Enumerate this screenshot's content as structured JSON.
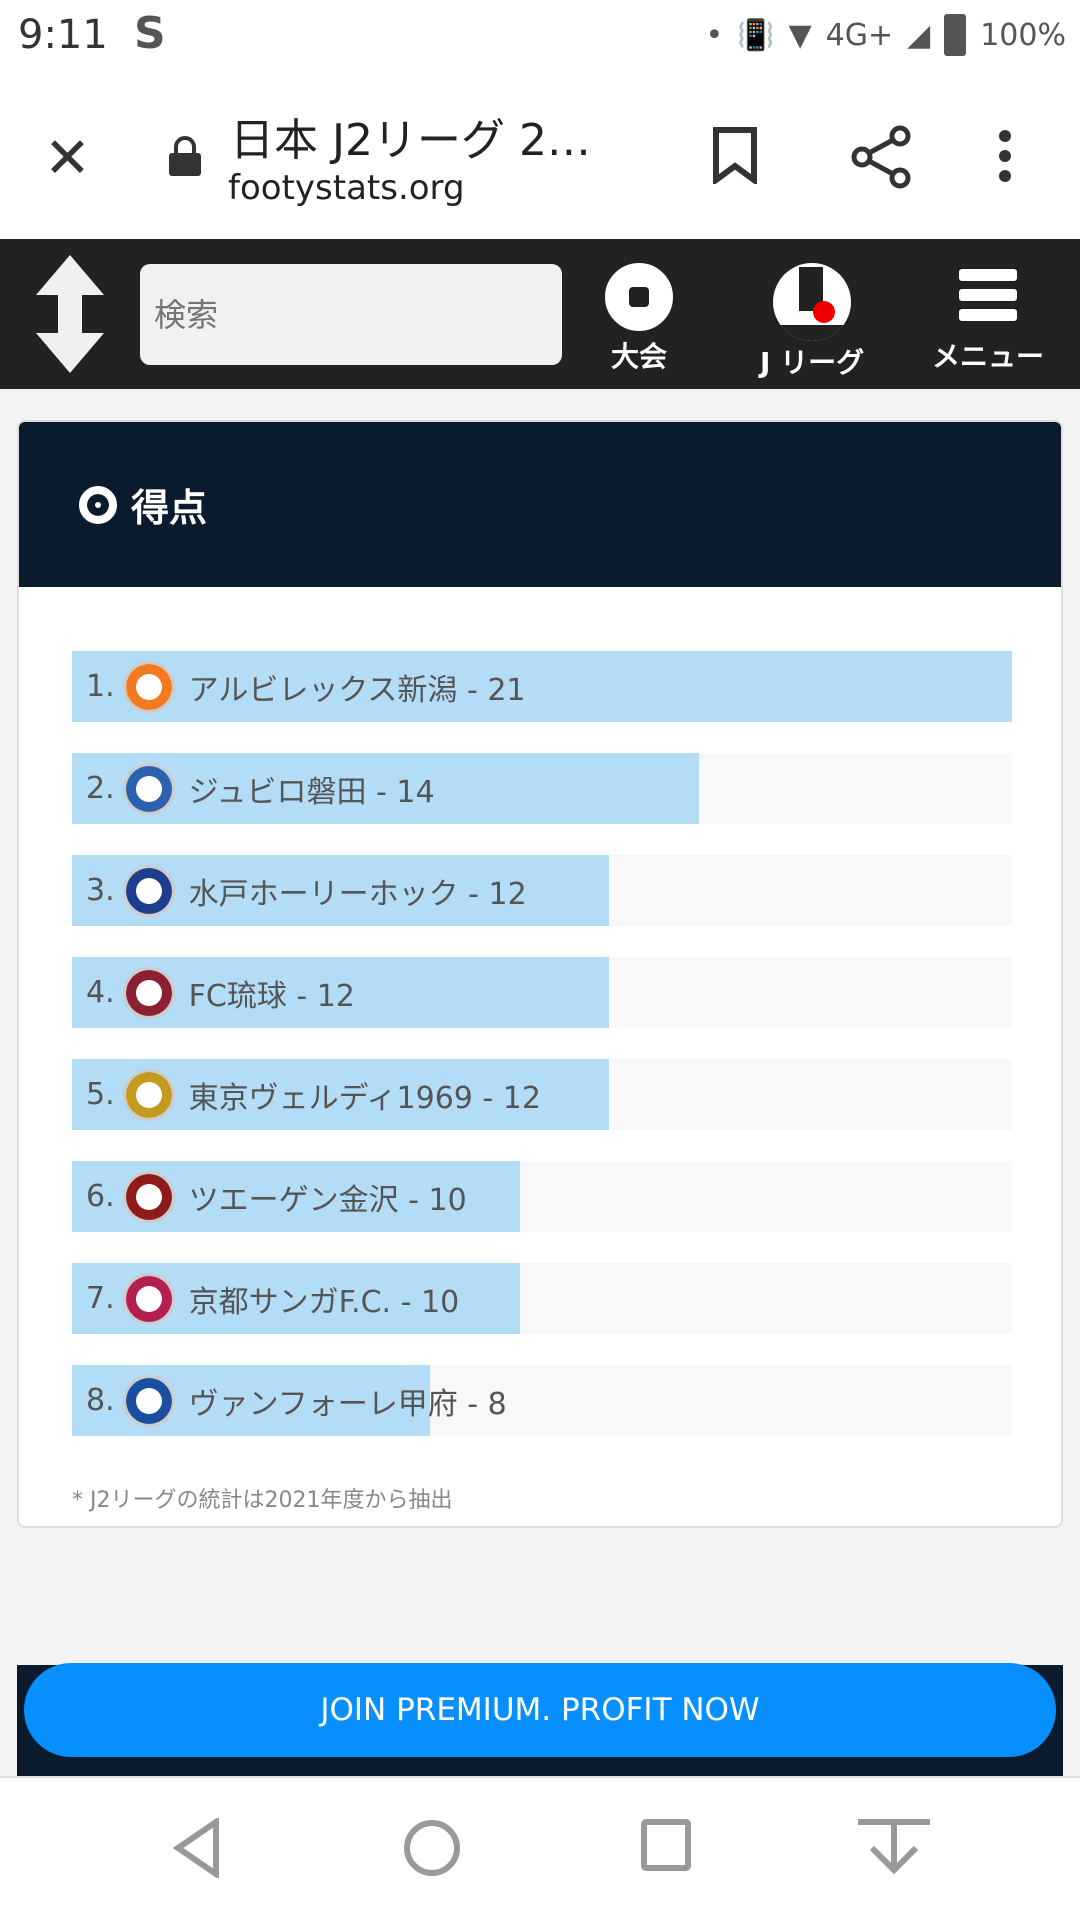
{
  "status_bar": {
    "time": "9:11",
    "network": "4G+",
    "battery": "100%"
  },
  "browser": {
    "title": "日本 J2リーグ 2…",
    "url": "footystats.org"
  },
  "nav": {
    "search_placeholder": "検索",
    "items": [
      {
        "label": "大会",
        "icon": "soccer-ball-icon"
      },
      {
        "label": "J リーグ",
        "icon": "j-league-logo-icon"
      },
      {
        "label": "メニュー",
        "icon": "hamburger-menu-icon"
      }
    ]
  },
  "card": {
    "title": "得点",
    "rows": [
      {
        "rank": "1.",
        "team": "アルビレックス新潟",
        "value": 21,
        "text": "アルビレックス新潟 - 21",
        "color": "#f47a20"
      },
      {
        "rank": "2.",
        "team": "ジュビロ磐田",
        "value": 14,
        "text": "ジュビロ磐田 - 14",
        "color": "#2a62b0"
      },
      {
        "rank": "3.",
        "team": "水戸ホーリーホック",
        "value": 12,
        "text": "水戸ホーリーホック - 12",
        "color": "#1d3d8f"
      },
      {
        "rank": "4.",
        "team": "FC琉球",
        "value": 12,
        "text": "FC琉球 - 12",
        "color": "#8a2030"
      },
      {
        "rank": "5.",
        "team": "東京ヴェルディ1969",
        "value": 12,
        "text": "東京ヴェルディ1969 - 12",
        "color": "#c59a20"
      },
      {
        "rank": "6.",
        "team": "ツエーゲン金沢",
        "value": 10,
        "text": "ツエーゲン金沢 - 10",
        "color": "#8e1a1a"
      },
      {
        "rank": "7.",
        "team": "京都サンガF.C.",
        "value": 10,
        "text": "京都サンガF.C. - 10",
        "color": "#b3204f"
      },
      {
        "rank": "8.",
        "team": "ヴァンフォーレ甲府",
        "value": 8,
        "text": "ヴァンフォーレ甲府 - 8",
        "color": "#1a4fa0"
      }
    ],
    "max_value": 21,
    "bar_color": "#b3dcf7",
    "note": "* J2リーグの統計は2021年度から抽出"
  },
  "premium": {
    "label": "JOIN PREMIUM. PROFIT NOW",
    "color": "#078ffd"
  }
}
